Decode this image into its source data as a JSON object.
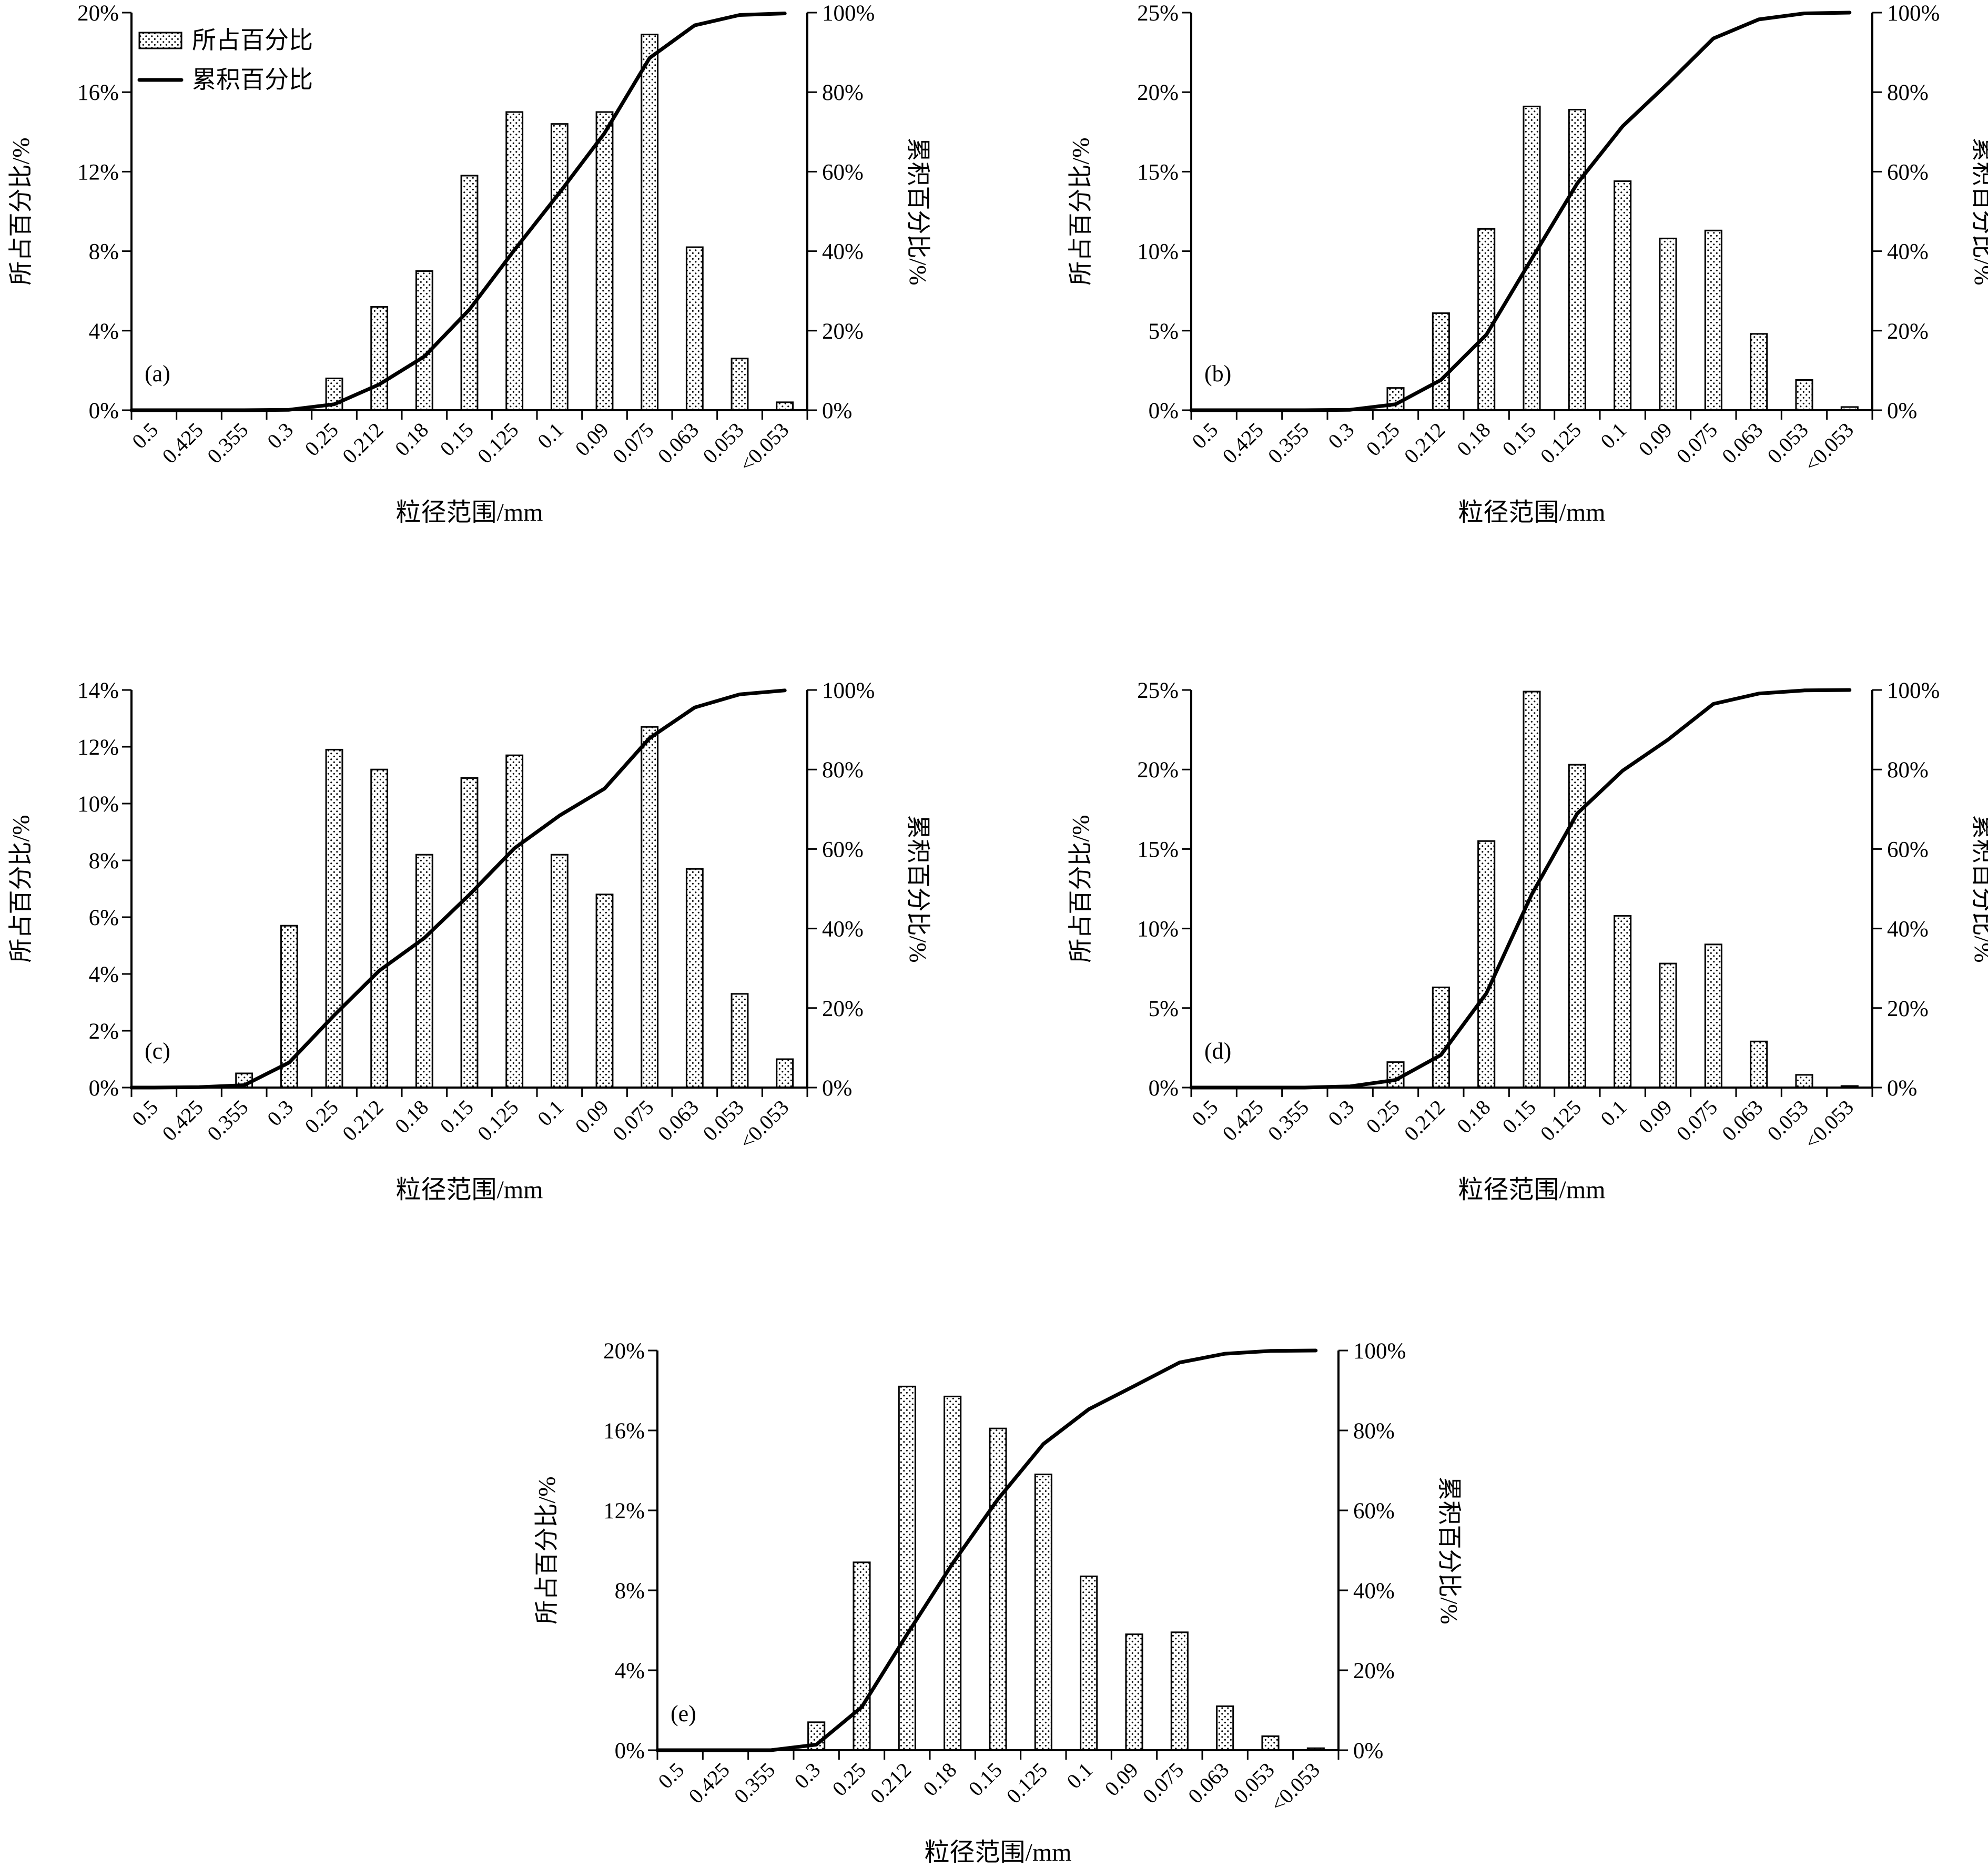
{
  "chart_data": [
    {
      "type": "bar",
      "panel_label": "(a)",
      "categories": [
        "0.5",
        "0.425",
        "0.355",
        "0.3",
        "0.25",
        "0.212",
        "0.18",
        "0.15",
        "0.125",
        "0.1",
        "0.09",
        "0.075",
        "0.063",
        "0.053",
        "<0.053"
      ],
      "series": [
        {
          "name": "所占百分比",
          "type": "bar",
          "axis": "left",
          "values": [
            0,
            0,
            0,
            0,
            1.6,
            5.2,
            7.0,
            11.8,
            15.0,
            14.4,
            15.0,
            18.9,
            8.2,
            2.6,
            0.4
          ]
        },
        {
          "name": "累积百分比",
          "type": "line",
          "axis": "right",
          "values": [
            0,
            0,
            0,
            0.1,
            1.5,
            6.5,
            13.5,
            25.3,
            40.3,
            54.7,
            69.7,
            88.6,
            96.8,
            99.4,
            99.8
          ]
        }
      ],
      "ylabel": "所占百分比/%",
      "y2label": "累积百分比/%",
      "xlabel": "粒径范围/mm",
      "ylim": [
        0,
        20
      ],
      "y2lim": [
        0,
        100
      ],
      "yticks": [
        "0%",
        "4%",
        "8%",
        "12%",
        "16%",
        "20%"
      ],
      "y2ticks": [
        "0%",
        "20%",
        "40%",
        "60%",
        "80%",
        "100%"
      ],
      "legend": [
        {
          "name": "所占百分比",
          "symbol": "dotted-bar"
        },
        {
          "name": "累积百分比",
          "symbol": "line"
        }
      ]
    },
    {
      "type": "bar",
      "panel_label": "(b)",
      "categories": [
        "0.5",
        "0.425",
        "0.355",
        "0.3",
        "0.25",
        "0.212",
        "0.18",
        "0.15",
        "0.125",
        "0.1",
        "0.09",
        "0.075",
        "0.063",
        "0.053",
        "<0.053"
      ],
      "series": [
        {
          "name": "所占百分比",
          "type": "bar",
          "axis": "left",
          "values": [
            0,
            0,
            0,
            0,
            1.4,
            6.1,
            11.4,
            19.1,
            18.9,
            14.4,
            10.8,
            11.3,
            4.8,
            1.9,
            0.2
          ]
        },
        {
          "name": "累积百分比",
          "type": "line",
          "axis": "right",
          "values": [
            0,
            0,
            0,
            0.1,
            1.5,
            7.6,
            19.0,
            38.1,
            57.0,
            71.4,
            82.2,
            93.5,
            98.3,
            99.8,
            100
          ]
        }
      ],
      "ylabel": "所占百分比/%",
      "y2label": "累积百分比/%",
      "xlabel": "粒径范围/mm",
      "ylim": [
        0,
        25
      ],
      "y2lim": [
        0,
        100
      ],
      "yticks": [
        "0%",
        "5%",
        "10%",
        "15%",
        "20%",
        "25%"
      ],
      "y2ticks": [
        "0%",
        "20%",
        "40%",
        "60%",
        "80%",
        "100%"
      ]
    },
    {
      "type": "bar",
      "panel_label": "(c)",
      "categories": [
        "0.5",
        "0.425",
        "0.355",
        "0.3",
        "0.25",
        "0.212",
        "0.18",
        "0.15",
        "0.125",
        "0.1",
        "0.09",
        "0.075",
        "0.063",
        "0.053",
        "<0.053"
      ],
      "series": [
        {
          "name": "所占百分比",
          "type": "bar",
          "axis": "left",
          "values": [
            0,
            0,
            0.5,
            5.7,
            11.9,
            11.2,
            8.2,
            10.9,
            11.7,
            8.2,
            6.8,
            12.7,
            7.7,
            3.3,
            1.0
          ]
        },
        {
          "name": "累积百分比",
          "type": "line",
          "axis": "right",
          "values": [
            0,
            0.1,
            0.6,
            6.3,
            18.2,
            29.4,
            37.6,
            48.5,
            60.2,
            68.4,
            75.2,
            87.9,
            95.6,
            98.9,
            99.9
          ]
        }
      ],
      "ylabel": "所占百分比/%",
      "y2label": "累积百分比/%",
      "xlabel": "粒径范围/mm",
      "ylim": [
        0,
        14
      ],
      "y2lim": [
        0,
        100
      ],
      "yticks": [
        "0%",
        "2%",
        "4%",
        "6%",
        "8%",
        "10%",
        "12%",
        "14%"
      ],
      "y2ticks": [
        "0%",
        "20%",
        "40%",
        "60%",
        "80%",
        "100%"
      ]
    },
    {
      "type": "bar",
      "panel_label": "(d)",
      "categories": [
        "0.5",
        "0.425",
        "0.355",
        "0.3",
        "0.25",
        "0.212",
        "0.18",
        "0.15",
        "0.125",
        "0.1",
        "0.09",
        "0.075",
        "0.063",
        "0.053",
        "<0.053"
      ],
      "series": [
        {
          "name": "所占百分比",
          "type": "bar",
          "axis": "left",
          "values": [
            0,
            0,
            0,
            0,
            1.6,
            6.3,
            15.5,
            24.9,
            20.3,
            10.8,
            7.8,
            9.0,
            2.9,
            0.8,
            0.1
          ]
        },
        {
          "name": "累积百分比",
          "type": "line",
          "axis": "right",
          "values": [
            0,
            0,
            0,
            0.3,
            1.9,
            8.2,
            23.7,
            48.6,
            68.9,
            79.7,
            87.5,
            96.5,
            99.1,
            99.9,
            100
          ]
        }
      ],
      "ylabel": "所占百分比/%",
      "y2label": "累积百分比/%",
      "xlabel": "粒径范围/mm",
      "ylim": [
        0,
        25
      ],
      "y2lim": [
        0,
        100
      ],
      "yticks": [
        "0%",
        "5%",
        "10%",
        "15%",
        "20%",
        "25%"
      ],
      "y2ticks": [
        "0%",
        "20%",
        "40%",
        "60%",
        "80%",
        "100%"
      ]
    },
    {
      "type": "bar",
      "panel_label": "(e)",
      "categories": [
        "0.5",
        "0.425",
        "0.355",
        "0.3",
        "0.25",
        "0.212",
        "0.18",
        "0.15",
        "0.125",
        "0.1",
        "0.09",
        "0.075",
        "0.063",
        "0.053",
        "<0.053"
      ],
      "series": [
        {
          "name": "所占百分比",
          "type": "bar",
          "axis": "left",
          "values": [
            0,
            0,
            0,
            1.4,
            9.4,
            18.2,
            17.7,
            16.1,
            13.8,
            8.7,
            5.8,
            5.9,
            2.2,
            0.7,
            0.1
          ]
        },
        {
          "name": "累积百分比",
          "type": "line",
          "axis": "right",
          "values": [
            0,
            0,
            0,
            1.4,
            10.8,
            29.0,
            46.7,
            62.8,
            76.6,
            85.3,
            91.1,
            97.0,
            99.2,
            99.9,
            100
          ]
        }
      ],
      "ylabel": "所占百分比/%",
      "y2label": "累积百分比/%",
      "xlabel": "粒径范围/mm",
      "ylim": [
        0,
        20
      ],
      "y2lim": [
        0,
        100
      ],
      "yticks": [
        "0%",
        "4%",
        "8%",
        "12%",
        "16%",
        "20%"
      ],
      "y2ticks": [
        "0%",
        "20%",
        "40%",
        "60%",
        "80%",
        "100%"
      ]
    }
  ]
}
